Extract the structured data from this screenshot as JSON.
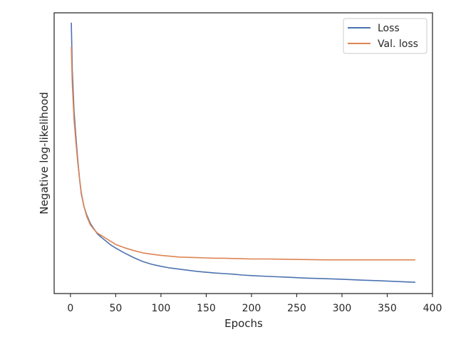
{
  "chart_data": {
    "type": "line",
    "xlabel": "Epochs",
    "ylabel": "Negative log-likelihood",
    "xlim": [
      -18,
      400
    ],
    "ylim": [
      0,
      1
    ],
    "x_ticks": [
      0,
      50,
      100,
      150,
      200,
      250,
      300,
      350,
      400
    ],
    "y_ticks_shown": false,
    "grid": false,
    "legend_position": "top-right",
    "series": [
      {
        "name": "Loss",
        "color": "#4c72b0",
        "x": [
          1,
          2,
          4,
          6,
          8,
          10,
          12,
          15,
          18,
          22,
          26,
          30,
          35,
          40,
          45,
          50,
          60,
          70,
          80,
          90,
          100,
          110,
          120,
          130,
          140,
          150,
          160,
          170,
          180,
          190,
          200,
          220,
          240,
          260,
          280,
          300,
          320,
          340,
          360,
          381
        ],
        "values": [
          0.965,
          0.8,
          0.65,
          0.56,
          0.48,
          0.41,
          0.355,
          0.31,
          0.28,
          0.25,
          0.23,
          0.212,
          0.198,
          0.185,
          0.172,
          0.162,
          0.144,
          0.128,
          0.114,
          0.104,
          0.097,
          0.091,
          0.087,
          0.083,
          0.079,
          0.076,
          0.073,
          0.071,
          0.069,
          0.066,
          0.064,
          0.061,
          0.058,
          0.055,
          0.053,
          0.051,
          0.048,
          0.046,
          0.043,
          0.04
        ]
      },
      {
        "name": "Val. loss",
        "color": "#dd8452",
        "x": [
          1,
          2,
          4,
          6,
          8,
          10,
          12,
          15,
          18,
          22,
          26,
          30,
          35,
          40,
          45,
          50,
          60,
          70,
          80,
          90,
          100,
          110,
          120,
          130,
          140,
          150,
          160,
          170,
          180,
          190,
          200,
          220,
          240,
          260,
          280,
          300,
          320,
          340,
          360,
          381
        ],
        "values": [
          0.88,
          0.75,
          0.62,
          0.54,
          0.47,
          0.41,
          0.36,
          0.31,
          0.275,
          0.245,
          0.228,
          0.215,
          0.205,
          0.195,
          0.185,
          0.175,
          0.163,
          0.153,
          0.145,
          0.14,
          0.136,
          0.133,
          0.13,
          0.129,
          0.128,
          0.127,
          0.126,
          0.126,
          0.125,
          0.124,
          0.123,
          0.123,
          0.122,
          0.121,
          0.12,
          0.12,
          0.12,
          0.12,
          0.12,
          0.12
        ]
      }
    ]
  }
}
